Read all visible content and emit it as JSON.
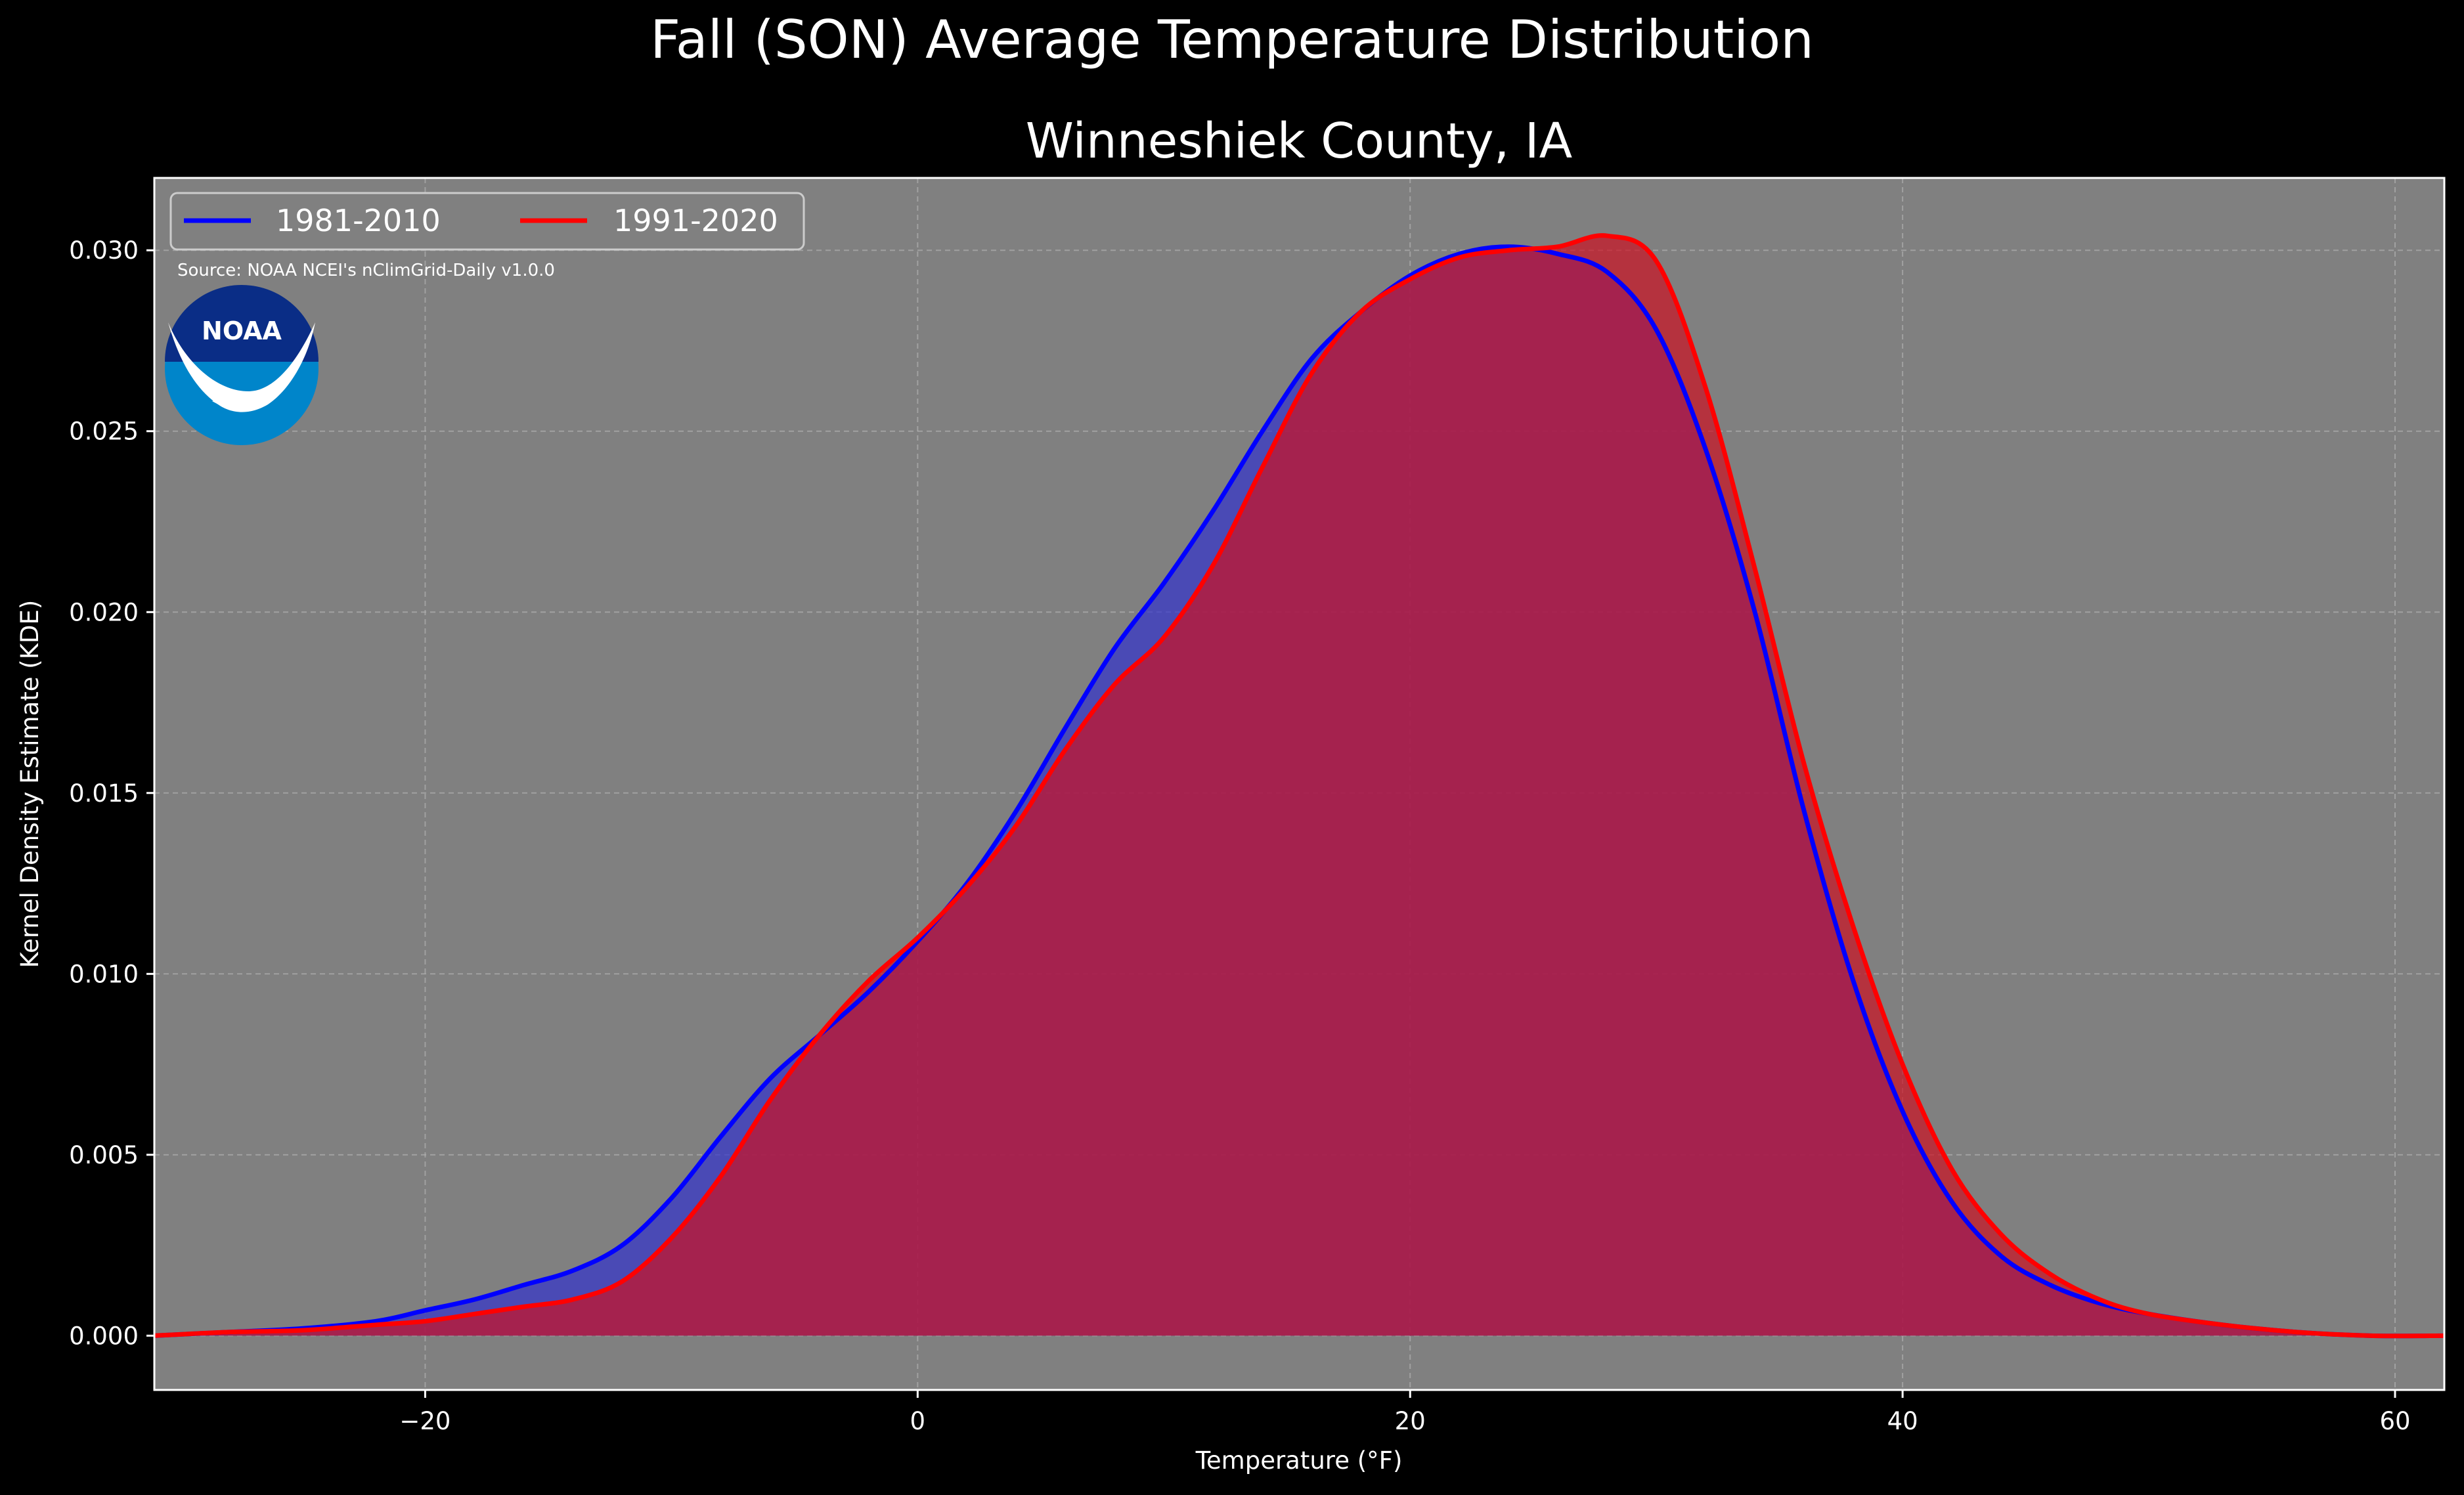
{
  "figure": {
    "suptitle": "Fall (SON) Average Temperature Distribution",
    "subtitle": "Winneshiek County, IA",
    "source_note": "Source: NOAA NCEI's nClimGrid-Daily v1.0.0",
    "logo_text": "NOAA",
    "background": "#000000",
    "plot_background": "#808080"
  },
  "chart_data": {
    "type": "area",
    "xlabel": "Temperature (°F)",
    "ylabel": "Kernel Density Estimate (KDE)",
    "xlim": [
      -31,
      62
    ],
    "ylim": [
      -0.0015,
      0.032
    ],
    "xticks": [
      -20,
      0,
      20,
      40,
      60
    ],
    "xtick_labels": [
      "−20",
      "0",
      "20",
      "40",
      "60"
    ],
    "yticks": [
      0.0,
      0.005,
      0.01,
      0.015,
      0.02,
      0.025,
      0.03
    ],
    "ytick_labels": [
      "0.000",
      "0.005",
      "0.010",
      "0.015",
      "0.020",
      "0.025",
      "0.030"
    ],
    "grid": true,
    "legend_position": "top-left",
    "series": [
      {
        "name": "1981-2010",
        "color": "#0000ff",
        "fill": "#3333cc",
        "x": [
          -31,
          -28,
          -25,
          -22,
          -20,
          -18,
          -16,
          -14,
          -12,
          -10,
          -8,
          -6,
          -4,
          -2,
          0,
          2,
          4,
          6,
          8,
          10,
          12,
          14,
          16,
          18,
          20,
          22,
          24,
          26,
          28,
          30,
          32,
          34,
          36,
          38,
          40,
          42,
          44,
          46,
          48,
          50,
          53,
          56,
          59,
          62
        ],
        "values": [
          0.0,
          0.0001,
          0.0002,
          0.0004,
          0.0007,
          0.001,
          0.0014,
          0.0018,
          0.0025,
          0.0038,
          0.0055,
          0.0071,
          0.0083,
          0.0095,
          0.0109,
          0.0125,
          0.0145,
          0.0168,
          0.019,
          0.0208,
          0.0228,
          0.025,
          0.027,
          0.0283,
          0.0293,
          0.0299,
          0.0301,
          0.0299,
          0.0294,
          0.0278,
          0.0245,
          0.02,
          0.0145,
          0.0098,
          0.0062,
          0.0037,
          0.0022,
          0.0014,
          0.0009,
          0.0006,
          0.0003,
          0.0001,
          0.0,
          0.0
        ]
      },
      {
        "name": "1991-2020",
        "color": "#ff0000",
        "fill": "#cc1122",
        "x": [
          -31,
          -28,
          -25,
          -22,
          -20,
          -18,
          -16,
          -14,
          -12,
          -10,
          -8,
          -6,
          -4,
          -2,
          0,
          2,
          4,
          6,
          8,
          10,
          12,
          14,
          16,
          18,
          20,
          22,
          24,
          26,
          28,
          30,
          32,
          34,
          36,
          38,
          40,
          42,
          44,
          46,
          48,
          50,
          53,
          56,
          59,
          62
        ],
        "values": [
          0.0,
          0.0001,
          0.00015,
          0.0003,
          0.0004,
          0.0006,
          0.0008,
          0.001,
          0.0015,
          0.0027,
          0.0044,
          0.0065,
          0.0083,
          0.0098,
          0.011,
          0.0124,
          0.0141,
          0.0162,
          0.018,
          0.0193,
          0.0213,
          0.024,
          0.0266,
          0.0283,
          0.0292,
          0.0298,
          0.03,
          0.0301,
          0.0304,
          0.0297,
          0.0262,
          0.0212,
          0.0158,
          0.0113,
          0.0075,
          0.0046,
          0.0028,
          0.0017,
          0.001,
          0.0006,
          0.0003,
          0.0001,
          0.0,
          0.0
        ]
      }
    ]
  }
}
